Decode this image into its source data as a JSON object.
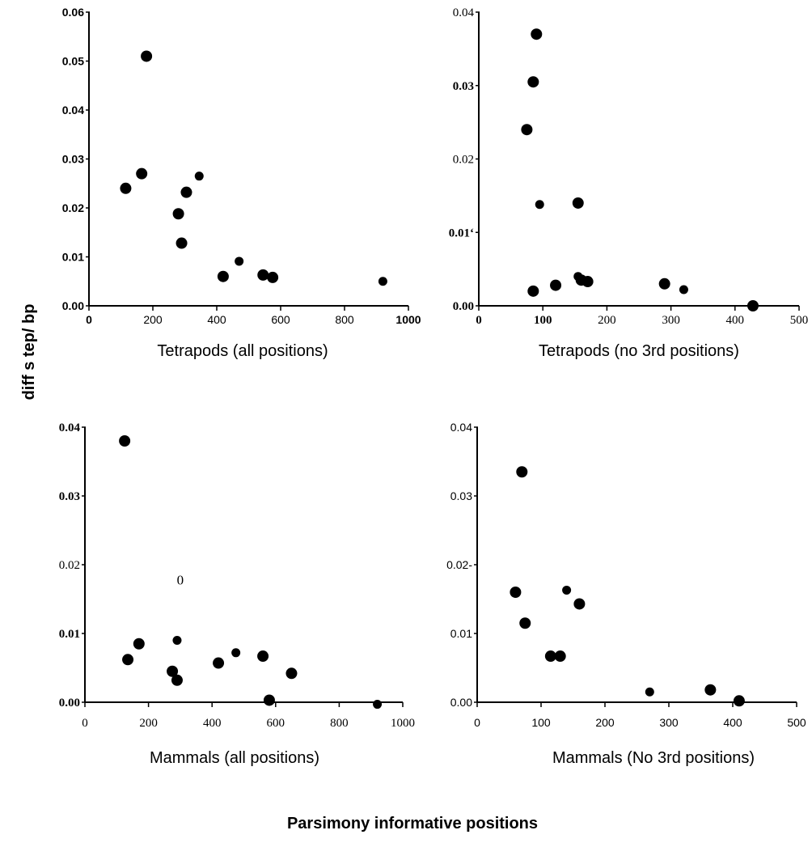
{
  "figure": {
    "ylabel": "diff s tep/ bp",
    "xlabel": "Parsimony informative positions"
  },
  "colors": {
    "ink": "#000000",
    "background": "#ffffff"
  },
  "chart_data": [
    {
      "type": "scatter",
      "panel": "top-left",
      "xlabel": "Tetrapods (all positions)",
      "xlim": [
        0,
        1000
      ],
      "ylim": [
        0,
        0.06
      ],
      "x_ticks": [
        "0",
        "200",
        "400",
        "600",
        "800",
        "1000"
      ],
      "y_ticks": [
        "0.00",
        "0.01",
        "0.02",
        "0.03",
        "0.04",
        "0.05",
        "0.06"
      ],
      "points": [
        {
          "x": 180,
          "y": 0.051
        },
        {
          "x": 165,
          "y": 0.027
        },
        {
          "x": 115,
          "y": 0.024
        },
        {
          "x": 345,
          "y": 0.0265
        },
        {
          "x": 305,
          "y": 0.0232
        },
        {
          "x": 280,
          "y": 0.0188
        },
        {
          "x": 290,
          "y": 0.0128
        },
        {
          "x": 470,
          "y": 0.0091
        },
        {
          "x": 420,
          "y": 0.006
        },
        {
          "x": 545,
          "y": 0.0063
        },
        {
          "x": 575,
          "y": 0.0058
        },
        {
          "x": 920,
          "y": 0.005
        }
      ]
    },
    {
      "type": "scatter",
      "panel": "top-right",
      "xlabel": "Tetrapods (no 3rd positions)",
      "xlim": [
        0,
        500
      ],
      "ylim": [
        0,
        0.04
      ],
      "x_ticks": [
        "0",
        "100",
        "200",
        "300",
        "400",
        "500"
      ],
      "y_ticks": [
        "0.00",
        "0.01‘",
        "0.02",
        "0.03",
        "0.04"
      ],
      "points": [
        {
          "x": 90,
          "y": 0.037
        },
        {
          "x": 85,
          "y": 0.0305
        },
        {
          "x": 75,
          "y": 0.024
        },
        {
          "x": 95,
          "y": 0.0138
        },
        {
          "x": 155,
          "y": 0.014
        },
        {
          "x": 85,
          "y": 0.002
        },
        {
          "x": 120,
          "y": 0.0028
        },
        {
          "x": 155,
          "y": 0.004
        },
        {
          "x": 160,
          "y": 0.0035
        },
        {
          "x": 170,
          "y": 0.0033
        },
        {
          "x": 290,
          "y": 0.003
        },
        {
          "x": 320,
          "y": 0.0022
        },
        {
          "x": 428,
          "y": 0.0
        }
      ]
    },
    {
      "type": "scatter",
      "panel": "bottom-left",
      "xlabel": "Mammals (all positions)",
      "xlim": [
        0,
        1000
      ],
      "ylim": [
        0,
        0.04
      ],
      "x_ticks": [
        "0",
        "200",
        "400",
        "600",
        "800",
        "1000"
      ],
      "y_ticks": [
        "0.00",
        "0.01",
        "0.02",
        "0.03",
        "0.04"
      ],
      "annotations": [
        "0"
      ],
      "points": [
        {
          "x": 125,
          "y": 0.038
        },
        {
          "x": 135,
          "y": 0.0062
        },
        {
          "x": 170,
          "y": 0.0085
        },
        {
          "x": 290,
          "y": 0.009
        },
        {
          "x": 275,
          "y": 0.0045
        },
        {
          "x": 290,
          "y": 0.0032
        },
        {
          "x": 420,
          "y": 0.0057
        },
        {
          "x": 475,
          "y": 0.0072
        },
        {
          "x": 560,
          "y": 0.0067
        },
        {
          "x": 580,
          "y": 0.0003
        },
        {
          "x": 650,
          "y": 0.0042
        },
        {
          "x": 920,
          "y": -0.0003
        }
      ]
    },
    {
      "type": "scatter",
      "panel": "bottom-right",
      "xlabel": "Mammals (No 3rd positions)",
      "xlim": [
        0,
        500
      ],
      "ylim": [
        0,
        0.04
      ],
      "x_ticks": [
        "0",
        "100",
        "200",
        "300",
        "400",
        "500"
      ],
      "y_ticks": [
        "0.00",
        "0.01",
        "0.02-",
        "0.03",
        "0.04"
      ],
      "points": [
        {
          "x": 70,
          "y": 0.0335
        },
        {
          "x": 60,
          "y": 0.016
        },
        {
          "x": 75,
          "y": 0.0115
        },
        {
          "x": 140,
          "y": 0.0163
        },
        {
          "x": 160,
          "y": 0.0143
        },
        {
          "x": 115,
          "y": 0.0067
        },
        {
          "x": 130,
          "y": 0.0067
        },
        {
          "x": 270,
          "y": 0.0015
        },
        {
          "x": 365,
          "y": 0.0018
        },
        {
          "x": 410,
          "y": 0.0002
        }
      ]
    }
  ]
}
